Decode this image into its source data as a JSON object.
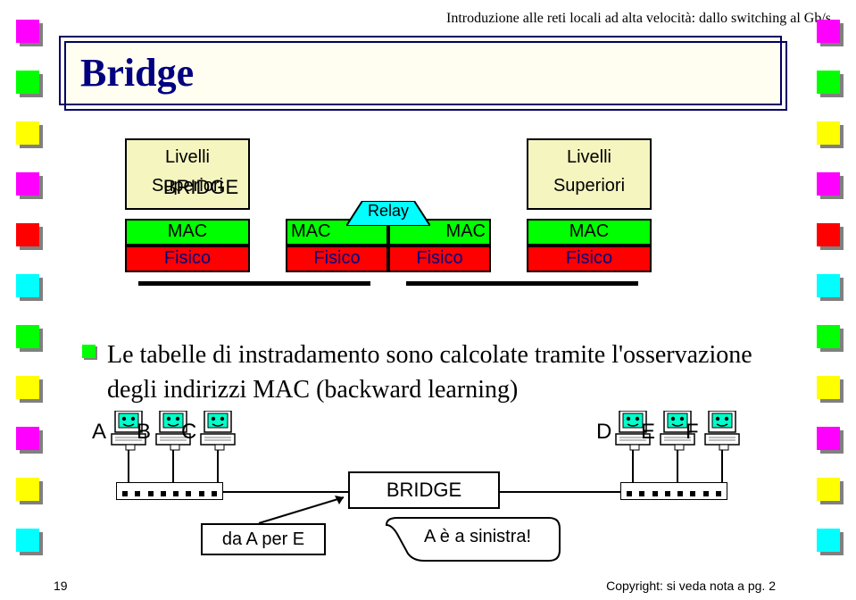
{
  "header": {
    "text": "Introduzione alle reti locali ad alta velocità: dallo switching al Gb/s",
    "color": "#000000"
  },
  "title": {
    "text": "Bridge",
    "color": "#000080",
    "box_bg": "#fffef0",
    "box_border": "#000066"
  },
  "decor_squares": {
    "left_colors": [
      "#ff00ff",
      "#00ff00",
      "#ffff00",
      "#ff00ff",
      "#ff0000",
      "#00ffff",
      "#00ff00",
      "#ffff00",
      "#ff00ff",
      "#ffff00",
      "#00ffff"
    ],
    "right_colors": [
      "#ff00ff",
      "#00ff00",
      "#ffff00",
      "#ff00ff",
      "#ff0000",
      "#00ffff",
      "#00ff00",
      "#ffff00",
      "#ff00ff",
      "#ffff00",
      "#00ffff"
    ],
    "shadow": "#808080"
  },
  "stacks": {
    "labels": {
      "livelli": "Livelli",
      "superiori": "Superiori",
      "mac": "MAC",
      "fisico": "Fisico",
      "relay": "Relay",
      "bridge": "BRIDGE"
    },
    "colors": {
      "superiori_bg": "#f5f5c0",
      "relay_bg": "#00ffff",
      "mac_bg": "#00ff00",
      "fisico_bg": "#ff0000",
      "fisico_text": "#000080",
      "baseline": "#000000",
      "border": "#000000"
    }
  },
  "bullet": {
    "color": "#00ff00",
    "text": "Le tabelle di instradamento sono calcolate tramite l'osservazione degli indirizzi MAC (backward learning)"
  },
  "network": {
    "hosts_left": [
      "A",
      "B",
      "C"
    ],
    "hosts_right": [
      "D",
      "E",
      "F"
    ],
    "bridge_label": "BRIDGE",
    "packet_text": "da A per E",
    "speech_text": "A è a sinistra!"
  },
  "footer": {
    "page": "19",
    "copyright": "Copyright: si veda nota a pg. 2"
  }
}
